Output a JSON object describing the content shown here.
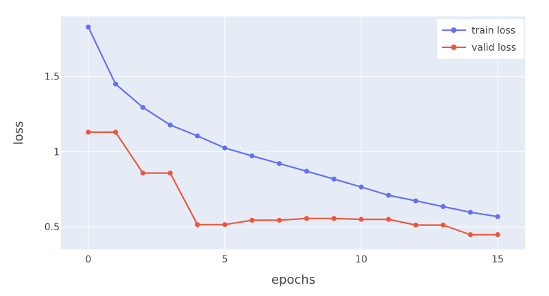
{
  "chart_data": {
    "type": "line",
    "xlabel": "epochs",
    "ylabel": "loss",
    "xlim": [
      -1,
      16
    ],
    "ylim": [
      0.35,
      1.9
    ],
    "x_ticks": [
      0,
      5,
      10,
      15
    ],
    "y_ticks": [
      0.5,
      1,
      1.5
    ],
    "x_tick_labels": [
      "0",
      "5",
      "10",
      "15"
    ],
    "y_tick_labels": [
      "0.5",
      "1",
      "1.5"
    ],
    "grid": true,
    "legend_position": "top-right",
    "plot_background": "#e5ecf6",
    "series": [
      {
        "name": "train loss",
        "color": "#636efa",
        "x": [
          0,
          1,
          2,
          3,
          4,
          5,
          6,
          7,
          8,
          9,
          10,
          11,
          12,
          13,
          14,
          15
        ],
        "values": [
          1.83,
          1.45,
          1.295,
          1.178,
          1.105,
          1.025,
          0.972,
          0.921,
          0.87,
          0.818,
          0.765,
          0.71,
          0.673,
          0.635,
          0.597,
          0.568
        ]
      },
      {
        "name": "valid loss",
        "color": "#ef553b",
        "x": [
          0,
          1,
          2,
          3,
          4,
          5,
          6,
          7,
          8,
          9,
          10,
          11,
          12,
          13,
          14,
          15
        ],
        "values": [
          1.13,
          1.13,
          0.858,
          0.858,
          0.515,
          0.515,
          0.544,
          0.544,
          0.556,
          0.556,
          0.55,
          0.55,
          0.512,
          0.512,
          0.448,
          0.448
        ]
      }
    ]
  }
}
